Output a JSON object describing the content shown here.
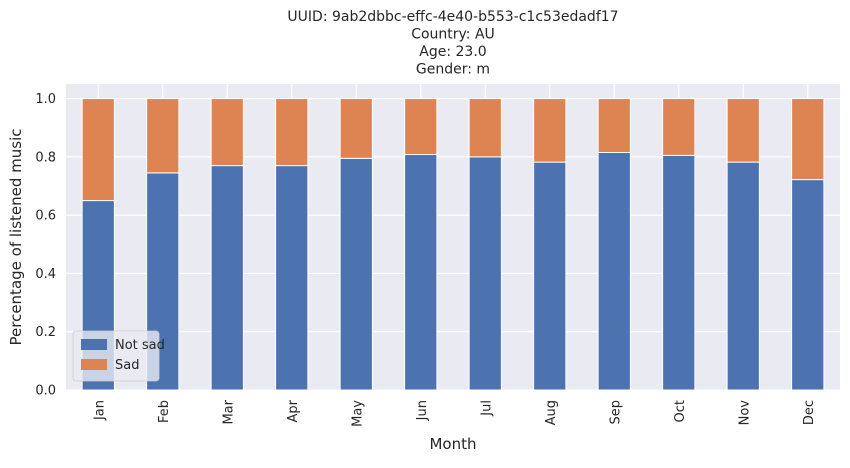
{
  "chart_data": {
    "type": "bar",
    "stacked": true,
    "title_lines": [
      "UUID: 9ab2dbbc-effc-4e40-b553-c1c53edadf17",
      "Country: AU",
      "Age: 23.0",
      "Gender: m"
    ],
    "xlabel": "Month",
    "ylabel": "Percentage of listened music",
    "categories": [
      "Jan",
      "Feb",
      "Mar",
      "Apr",
      "May",
      "Jun",
      "Jul",
      "Aug",
      "Sep",
      "Oct",
      "Nov",
      "Dec"
    ],
    "series": [
      {
        "name": "Not sad",
        "color": "#4c72b0",
        "values": [
          0.65,
          0.745,
          0.77,
          0.77,
          0.795,
          0.808,
          0.8,
          0.782,
          0.815,
          0.805,
          0.782,
          0.722
        ]
      },
      {
        "name": "Sad",
        "color": "#dd8452",
        "values": [
          0.35,
          0.255,
          0.23,
          0.23,
          0.205,
          0.192,
          0.2,
          0.218,
          0.185,
          0.195,
          0.218,
          0.278
        ]
      }
    ],
    "ylim": [
      0,
      1.05
    ],
    "yticks": [
      "0.0",
      "0.2",
      "0.4",
      "0.6",
      "0.8",
      "1.0"
    ],
    "grid": true,
    "legend_position": "lower-left",
    "background": "#eaeaf2",
    "grid_color": "#ffffff"
  }
}
